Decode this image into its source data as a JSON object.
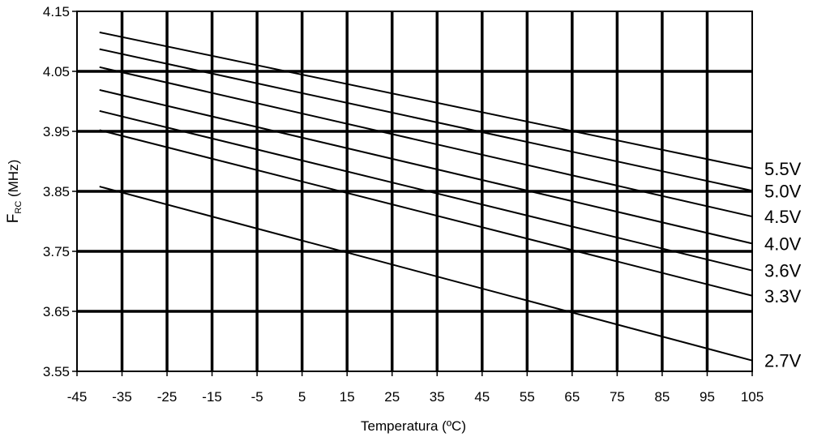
{
  "chart_data": {
    "type": "line",
    "xlabel": "Temperatura (ºC)",
    "ylabel": {
      "main": "F",
      "sub": "RC",
      "unit": " (MHz)"
    },
    "xlim": [
      -45,
      105
    ],
    "ylim": [
      3.55,
      4.15
    ],
    "xticks": [
      "-45",
      "-35",
      "-25",
      "-15",
      "-5",
      "5",
      "15",
      "25",
      "35",
      "45",
      "55",
      "65",
      "75",
      "85",
      "95",
      "105"
    ],
    "yticks": [
      "4.15",
      "4.05",
      "3.95",
      "3.85",
      "3.75",
      "3.65",
      "3.55"
    ],
    "grid": true,
    "colors": {
      "line": "#000000",
      "grid": "#000000",
      "frame": "#000000"
    },
    "series": [
      {
        "name": "5.5V",
        "x": [
          -40,
          105
        ],
        "y": [
          4.115,
          3.888
        ]
      },
      {
        "name": "5.0V",
        "x": [
          -40,
          105
        ],
        "y": [
          4.087,
          3.851
        ]
      },
      {
        "name": "4.5V",
        "x": [
          -40,
          105
        ],
        "y": [
          4.057,
          3.808
        ]
      },
      {
        "name": "4.0V",
        "x": [
          -40,
          105
        ],
        "y": [
          4.019,
          3.763
        ]
      },
      {
        "name": "3.6V",
        "x": [
          -40,
          105
        ],
        "y": [
          3.984,
          3.718
        ]
      },
      {
        "name": "3.3V",
        "x": [
          -40,
          105
        ],
        "y": [
          3.952,
          3.676
        ]
      },
      {
        "name": "2.7V",
        "x": [
          -40,
          105
        ],
        "y": [
          3.858,
          3.568
        ]
      }
    ]
  }
}
